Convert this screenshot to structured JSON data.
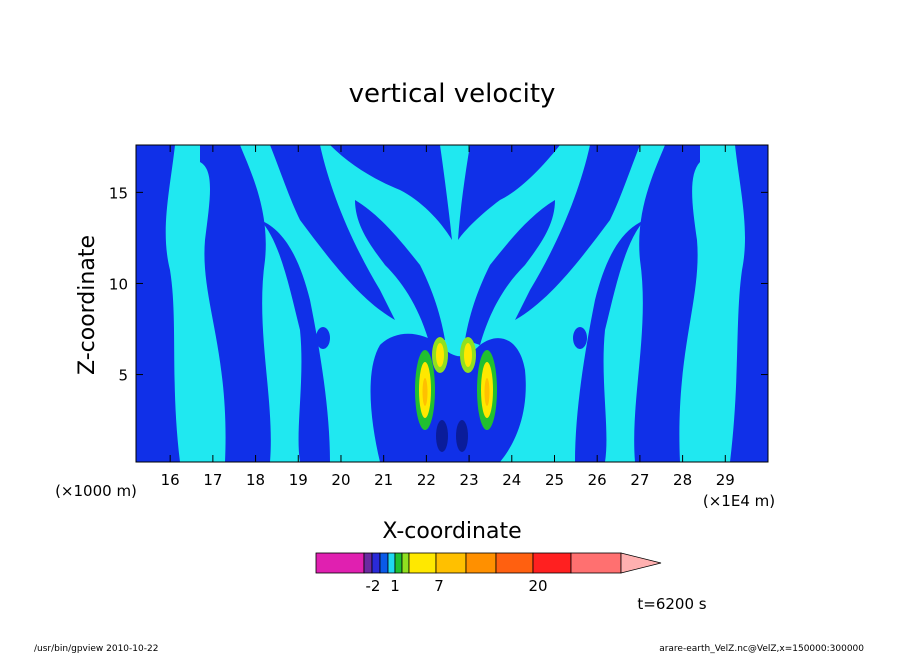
{
  "chart_data": {
    "type": "contour",
    "title": "vertical velocity",
    "xlabel": "X-coordinate",
    "ylabel": "Z-coordinate",
    "x_unit_left": "(×1000 m)",
    "x_unit_right": "(×1E4 m)",
    "x_ticks": [
      "16",
      "17",
      "18",
      "19",
      "20",
      "21",
      "22",
      "23",
      "24",
      "25",
      "26",
      "27",
      "28",
      "29"
    ],
    "y_ticks": [
      "15",
      "10",
      "5"
    ],
    "xlim": [
      15.2,
      30.0
    ],
    "ylim": [
      0.2,
      17.6
    ],
    "time_label": "t=6200 s",
    "colorbar": {
      "colors": [
        "#e020b0",
        "#6a2aa0",
        "#2a2ad8",
        "#0a5ae8",
        "#20d8f0",
        "#20c030",
        "#90e020",
        "#ffe800",
        "#ffc000",
        "#ff9000",
        "#ff6010",
        "#ff2020",
        "#ff7070",
        "#ffb0b0"
      ],
      "tick_labels": [
        "-2",
        "1",
        "7",
        "20"
      ]
    },
    "fields": [
      {
        "level": "negative",
        "color": "#1030e8"
      },
      {
        "level": "near-zero",
        "color": "#20e8f0"
      },
      {
        "level": "positive",
        "color": "#ffe800"
      }
    ]
  },
  "footer": {
    "left": "/usr/bin/gpview   2010-10-22",
    "right": "arare-earth_VelZ.nc@VelZ,x=150000:300000"
  }
}
